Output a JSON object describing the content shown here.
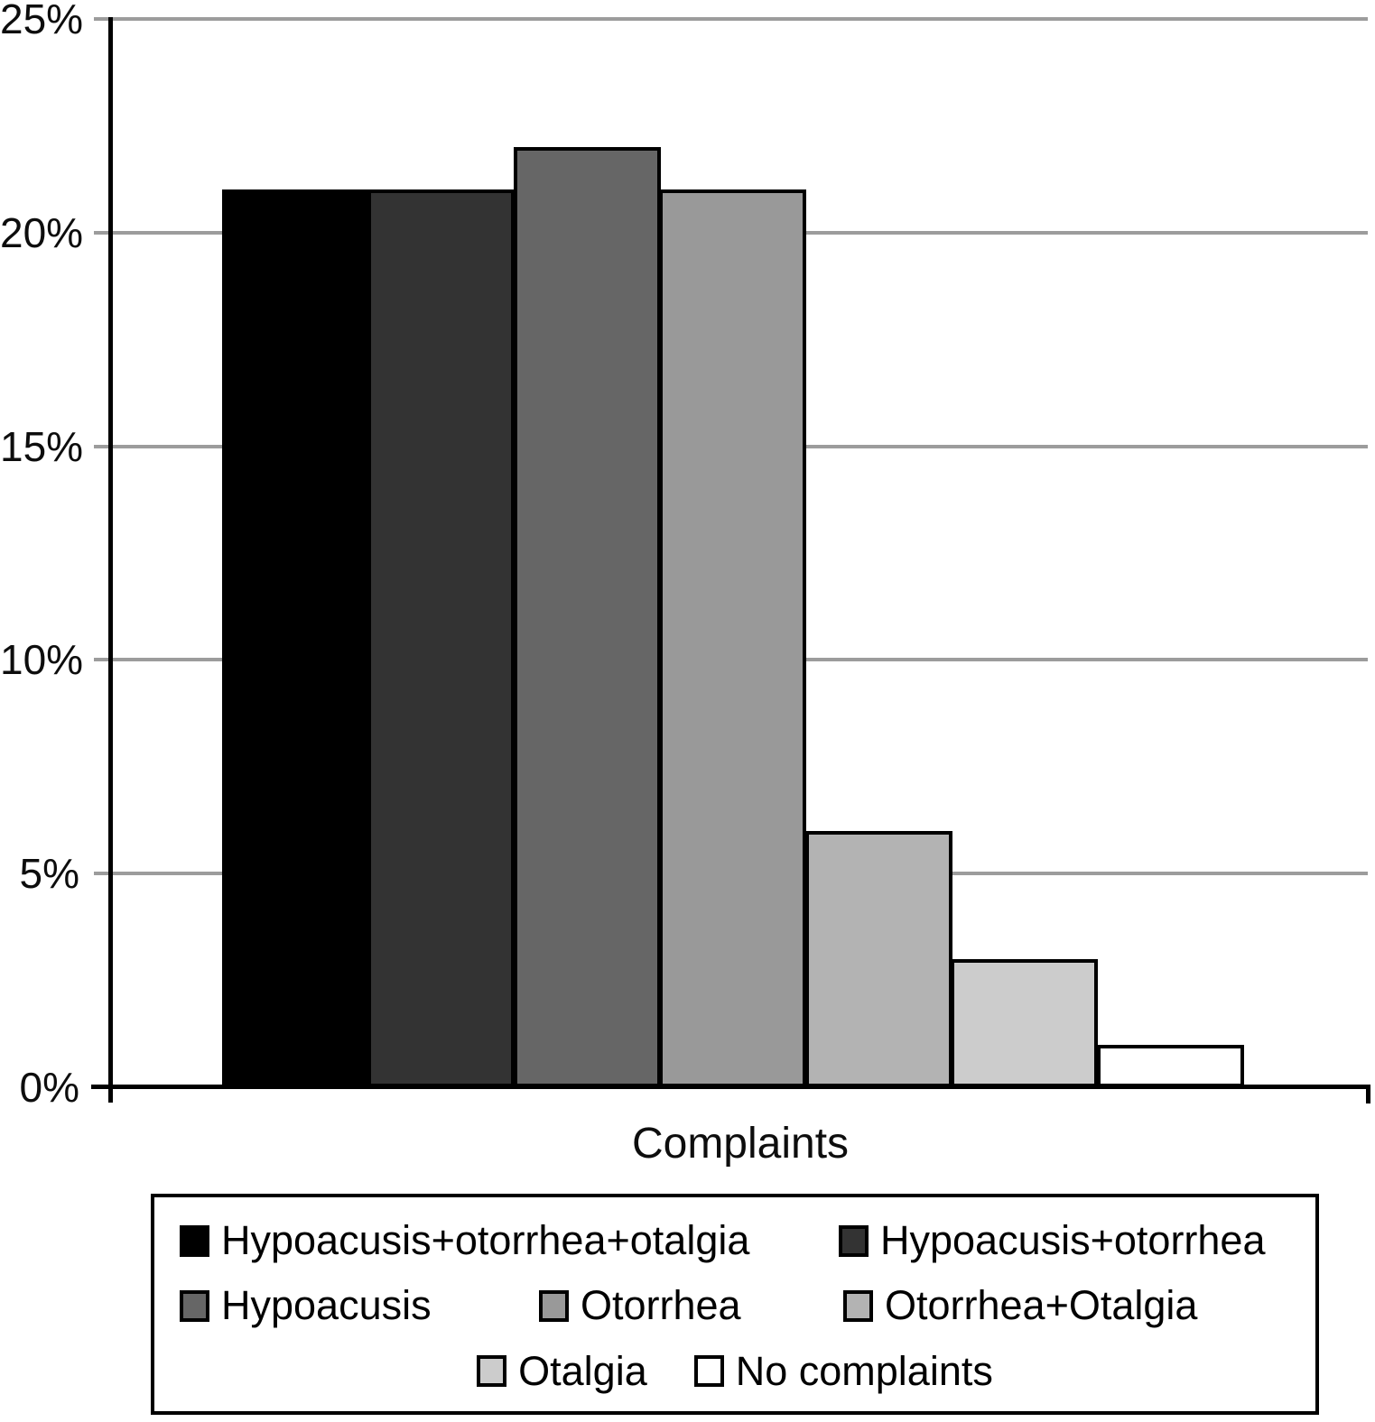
{
  "chart_data": {
    "type": "bar",
    "title": "",
    "xlabel": "Complaints",
    "ylabel": "",
    "ylim": [
      0,
      25
    ],
    "grid": "horizontal",
    "legend_position": "bottom",
    "yticks": [
      {
        "value": 0,
        "label": "0%"
      },
      {
        "value": 5,
        "label": "5%"
      },
      {
        "value": 10,
        "label": "10%"
      },
      {
        "value": 15,
        "label": "15%"
      },
      {
        "value": 20,
        "label": "20%"
      },
      {
        "value": 25,
        "label": "25%"
      }
    ],
    "categories": [
      "Hypoacusis+otorrhea+otalgia",
      "Hypoacusis+otorrhea",
      "Hypoacusis",
      "Otorrhea",
      "Otorrhea+Otalgia",
      "Otalgia",
      "No complaints"
    ],
    "values": [
      21,
      21,
      22,
      21,
      6,
      3,
      1
    ],
    "bar_colors": [
      "#000000",
      "#333333",
      "#666666",
      "#999999",
      "#b3b3b3",
      "#cccccc",
      "#ffffff"
    ],
    "legend_rows": [
      [
        0,
        1
      ],
      [
        2,
        3,
        4
      ],
      [
        5,
        6
      ]
    ]
  },
  "colors": {
    "axis": "#000000",
    "gridline": "#9c9c9c",
    "bar_border": "#000000",
    "background": "#ffffff"
  }
}
